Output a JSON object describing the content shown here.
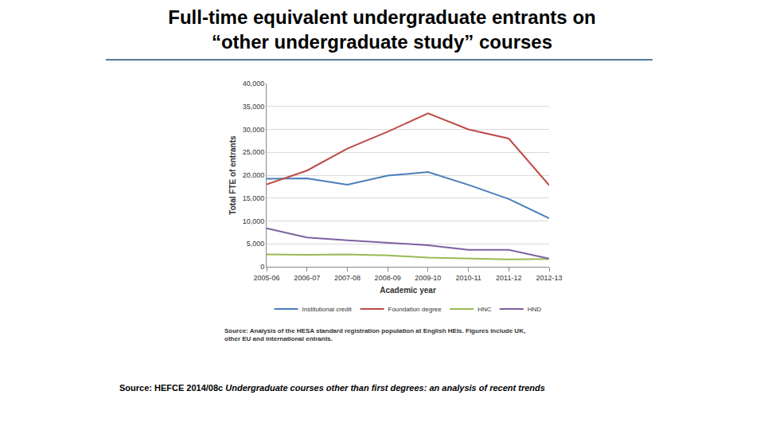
{
  "chart_data": {
    "type": "line",
    "title": "Full-time equivalent undergraduate entrants on\n“other undergraduate study” courses",
    "x_label": "Academic year",
    "y_label": "Total FTE of entrants",
    "categories": [
      "2005-06",
      "2006-07",
      "2007-08",
      "2008-09",
      "2009-10",
      "2010-11",
      "2011-12",
      "2012-13"
    ],
    "series": [
      {
        "name": "Institutional credit",
        "color": "#4a7ebb",
        "line_style": "solid",
        "values": [
          19200,
          19300,
          17900,
          19900,
          20700,
          17900,
          14800,
          10600
        ]
      },
      {
        "name": "Foundation degree",
        "color": "#be4b48",
        "line_style": "solid",
        "values": [
          18000,
          21000,
          25800,
          29500,
          33500,
          30000,
          28000,
          17800
        ]
      },
      {
        "name": "HNC",
        "color": "#98b954",
        "line_style": "solid",
        "values": [
          2700,
          2600,
          2700,
          2500,
          2000,
          1800,
          1600,
          1700
        ]
      },
      {
        "name": "HND",
        "color": "#7d60a0",
        "line_style": "solid",
        "values": [
          8400,
          6400,
          5800,
          5200,
          4700,
          3700,
          3700,
          1800
        ]
      }
    ],
    "ylim": [
      0,
      40000
    ],
    "yticks": [
      0,
      {
        "value": 5000,
        "label": "5,000"
      },
      {
        "value": 10000,
        "label": "10,000"
      },
      {
        "value": 15000,
        "label": "15,000"
      },
      {
        "value": 20000,
        "label": "20,000"
      },
      {
        "value": 25000,
        "label": "25,000"
      },
      {
        "value": 30000,
        "label": "30,000"
      },
      {
        "value": 35000,
        "label": "35,000"
      },
      {
        "value": 40000,
        "label": "40,000"
      }
    ],
    "grid": true,
    "legend": "bottom",
    "annotations": [
      {
        "text": "Source: Analysis of the HESA standard registration population at English HEIs. Figures include UK,\nother EU and international entrants."
      }
    ],
    "source": [
      "Source: HEFCE 2014/08c",
      "Undergraduate courses other than first degrees: an analysis of recent trends"
    ]
  }
}
